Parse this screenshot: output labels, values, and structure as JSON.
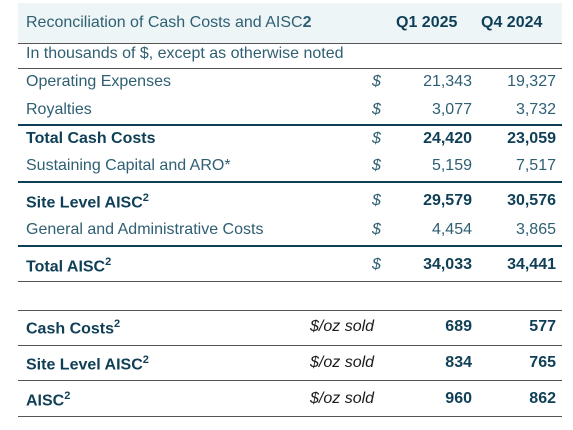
{
  "header": {
    "title": "Reconciliation of Cash Costs and AISC",
    "title_sup": "2",
    "col1": "Q1 2025",
    "col2": "Q4 2024"
  },
  "units_note": "In thousands of $, except as otherwise noted",
  "rows": [
    {
      "label": "Operating Expenses",
      "currency": "$",
      "q1": "21,343",
      "q4": "19,327"
    },
    {
      "label": "Royalties",
      "currency": "$",
      "q1": "3,077",
      "q4": "3,732"
    },
    {
      "label": "Total Cash Costs",
      "currency": "$",
      "q1": "24,420",
      "q4": "23,059"
    },
    {
      "label": "Sustaining Capital and ARO*",
      "currency": "$",
      "q1": "5,159",
      "q4": "7,517"
    },
    {
      "label": "Site Level AISC",
      "sup": "2",
      "currency": "$",
      "q1": "29,579",
      "q4": "30,576"
    },
    {
      "label": "General and Administrative Costs",
      "currency": "$",
      "q1": "4,454",
      "q4": "3,865"
    },
    {
      "label": "Total AISC",
      "sup": "2",
      "currency": "$",
      "q1": "34,033",
      "q4": "34,441"
    }
  ],
  "per_oz": [
    {
      "label": "Cash Costs",
      "sup": "2",
      "unit": "$/oz sold",
      "q1": "689",
      "q4": "577"
    },
    {
      "label": "Site Level AISC",
      "sup": "2",
      "unit": "$/oz sold",
      "q1": "834",
      "q4": "765"
    },
    {
      "label": "AISC",
      "sup": "2",
      "unit": "$/oz sold",
      "q1": "960",
      "q4": "862"
    }
  ],
  "colors": {
    "header_bg": "#eef5f7",
    "text": "#2e5f73",
    "bold": "#0f3f56"
  }
}
